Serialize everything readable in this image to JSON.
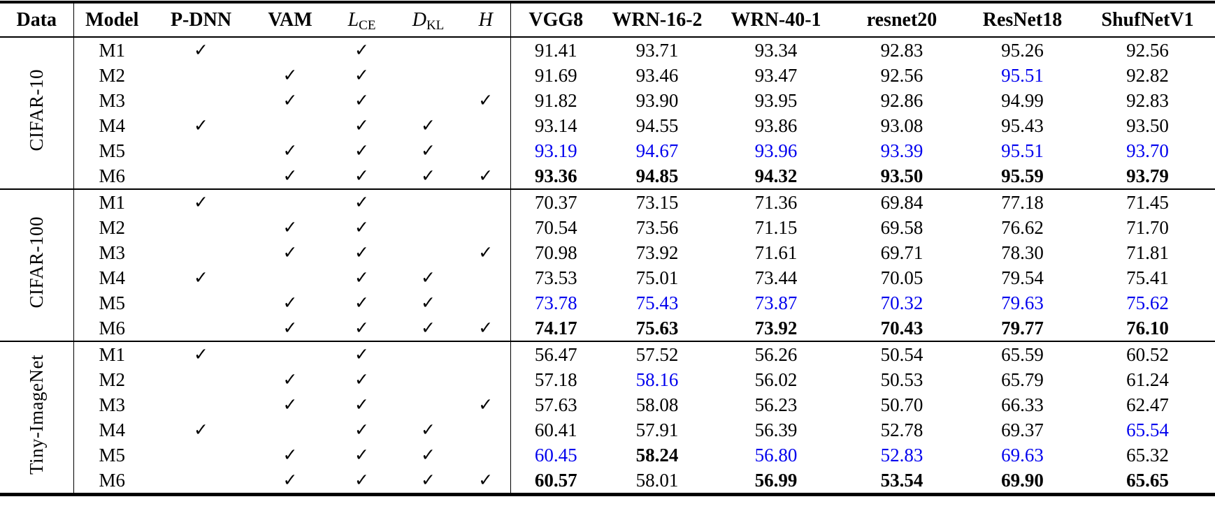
{
  "meta": {
    "description": "Ablation study table: distillation method variants M1-M6 evaluated on three datasets across six student networks",
    "colors": {
      "highlight_blue": "#0000EE",
      "text": "#000000",
      "background": "#ffffff"
    }
  },
  "table": {
    "check_glyph": "✓",
    "header": {
      "data": "Data",
      "model": "Model",
      "pdnn": "P-DNN",
      "vam": "VAM",
      "lce_base": "L",
      "lce_sub": "CE",
      "dkl_base": "D",
      "dkl_sub": "KL",
      "h_base": "H",
      "students": [
        "VGG8",
        "WRN-16-2",
        "WRN-40-1",
        "resnet20",
        "ResNet18",
        "ShufNetV1"
      ]
    },
    "component_columns": [
      "P-DNN",
      "VAM",
      "L_CE",
      "D_KL",
      "H"
    ],
    "groups": [
      {
        "dataset": "CIFAR-10",
        "rows": [
          {
            "model": "M1",
            "checks": [
              1,
              0,
              1,
              0,
              0
            ],
            "cells": [
              {
                "v": "91.41",
                "s": "n"
              },
              {
                "v": "93.71",
                "s": "n"
              },
              {
                "v": "93.34",
                "s": "n"
              },
              {
                "v": "92.83",
                "s": "n"
              },
              {
                "v": "95.26",
                "s": "n"
              },
              {
                "v": "92.56",
                "s": "n"
              }
            ]
          },
          {
            "model": "M2",
            "checks": [
              0,
              1,
              1,
              0,
              0
            ],
            "cells": [
              {
                "v": "91.69",
                "s": "n"
              },
              {
                "v": "93.46",
                "s": "n"
              },
              {
                "v": "93.47",
                "s": "n"
              },
              {
                "v": "92.56",
                "s": "n"
              },
              {
                "v": "95.51",
                "s": "u"
              },
              {
                "v": "92.82",
                "s": "n"
              }
            ]
          },
          {
            "model": "M3",
            "checks": [
              0,
              1,
              1,
              0,
              1
            ],
            "cells": [
              {
                "v": "91.82",
                "s": "n"
              },
              {
                "v": "93.90",
                "s": "n"
              },
              {
                "v": "93.95",
                "s": "n"
              },
              {
                "v": "92.86",
                "s": "n"
              },
              {
                "v": "94.99",
                "s": "n"
              },
              {
                "v": "92.83",
                "s": "n"
              }
            ]
          },
          {
            "model": "M4",
            "checks": [
              1,
              0,
              1,
              1,
              0
            ],
            "cells": [
              {
                "v": "93.14",
                "s": "n"
              },
              {
                "v": "94.55",
                "s": "n"
              },
              {
                "v": "93.86",
                "s": "n"
              },
              {
                "v": "93.08",
                "s": "n"
              },
              {
                "v": "95.43",
                "s": "n"
              },
              {
                "v": "93.50",
                "s": "n"
              }
            ]
          },
          {
            "model": "M5",
            "checks": [
              0,
              1,
              1,
              1,
              0
            ],
            "cells": [
              {
                "v": "93.19",
                "s": "u"
              },
              {
                "v": "94.67",
                "s": "u"
              },
              {
                "v": "93.96",
                "s": "u"
              },
              {
                "v": "93.39",
                "s": "u"
              },
              {
                "v": "95.51",
                "s": "u"
              },
              {
                "v": "93.70",
                "s": "u"
              }
            ]
          },
          {
            "model": "M6",
            "checks": [
              0,
              1,
              1,
              1,
              1
            ],
            "cells": [
              {
                "v": "93.36",
                "s": "b"
              },
              {
                "v": "94.85",
                "s": "b"
              },
              {
                "v": "94.32",
                "s": "b"
              },
              {
                "v": "93.50",
                "s": "b"
              },
              {
                "v": "95.59",
                "s": "b"
              },
              {
                "v": "93.79",
                "s": "b"
              }
            ]
          }
        ]
      },
      {
        "dataset": "CIFAR-100",
        "rows": [
          {
            "model": "M1",
            "checks": [
              1,
              0,
              1,
              0,
              0
            ],
            "cells": [
              {
                "v": "70.37",
                "s": "n"
              },
              {
                "v": "73.15",
                "s": "n"
              },
              {
                "v": "71.36",
                "s": "n"
              },
              {
                "v": "69.84",
                "s": "n"
              },
              {
                "v": "77.18",
                "s": "n"
              },
              {
                "v": "71.45",
                "s": "n"
              }
            ]
          },
          {
            "model": "M2",
            "checks": [
              0,
              1,
              1,
              0,
              0
            ],
            "cells": [
              {
                "v": "70.54",
                "s": "n"
              },
              {
                "v": "73.56",
                "s": "n"
              },
              {
                "v": "71.15",
                "s": "n"
              },
              {
                "v": "69.58",
                "s": "n"
              },
              {
                "v": "76.62",
                "s": "n"
              },
              {
                "v": "71.70",
                "s": "n"
              }
            ]
          },
          {
            "model": "M3",
            "checks": [
              0,
              1,
              1,
              0,
              1
            ],
            "cells": [
              {
                "v": "70.98",
                "s": "n"
              },
              {
                "v": "73.92",
                "s": "n"
              },
              {
                "v": "71.61",
                "s": "n"
              },
              {
                "v": "69.71",
                "s": "n"
              },
              {
                "v": "78.30",
                "s": "n"
              },
              {
                "v": "71.81",
                "s": "n"
              }
            ]
          },
          {
            "model": "M4",
            "checks": [
              1,
              0,
              1,
              1,
              0
            ],
            "cells": [
              {
                "v": "73.53",
                "s": "n"
              },
              {
                "v": "75.01",
                "s": "n"
              },
              {
                "v": "73.44",
                "s": "n"
              },
              {
                "v": "70.05",
                "s": "n"
              },
              {
                "v": "79.54",
                "s": "n"
              },
              {
                "v": "75.41",
                "s": "n"
              }
            ]
          },
          {
            "model": "M5",
            "checks": [
              0,
              1,
              1,
              1,
              0
            ],
            "cells": [
              {
                "v": "73.78",
                "s": "u"
              },
              {
                "v": "75.43",
                "s": "u"
              },
              {
                "v": "73.87",
                "s": "u"
              },
              {
                "v": "70.32",
                "s": "u"
              },
              {
                "v": "79.63",
                "s": "u"
              },
              {
                "v": "75.62",
                "s": "u"
              }
            ]
          },
          {
            "model": "M6",
            "checks": [
              0,
              1,
              1,
              1,
              1
            ],
            "cells": [
              {
                "v": "74.17",
                "s": "b"
              },
              {
                "v": "75.63",
                "s": "b"
              },
              {
                "v": "73.92",
                "s": "b"
              },
              {
                "v": "70.43",
                "s": "b"
              },
              {
                "v": "79.77",
                "s": "b"
              },
              {
                "v": "76.10",
                "s": "b"
              }
            ]
          }
        ]
      },
      {
        "dataset": "Tiny-ImageNet",
        "rows": [
          {
            "model": "M1",
            "checks": [
              1,
              0,
              1,
              0,
              0
            ],
            "cells": [
              {
                "v": "56.47",
                "s": "n"
              },
              {
                "v": "57.52",
                "s": "n"
              },
              {
                "v": "56.26",
                "s": "n"
              },
              {
                "v": "50.54",
                "s": "n"
              },
              {
                "v": "65.59",
                "s": "n"
              },
              {
                "v": "60.52",
                "s": "n"
              }
            ]
          },
          {
            "model": "M2",
            "checks": [
              0,
              1,
              1,
              0,
              0
            ],
            "cells": [
              {
                "v": "57.18",
                "s": "n"
              },
              {
                "v": "58.16",
                "s": "u"
              },
              {
                "v": "56.02",
                "s": "n"
              },
              {
                "v": "50.53",
                "s": "n"
              },
              {
                "v": "65.79",
                "s": "n"
              },
              {
                "v": "61.24",
                "s": "n"
              }
            ]
          },
          {
            "model": "M3",
            "checks": [
              0,
              1,
              1,
              0,
              1
            ],
            "cells": [
              {
                "v": "57.63",
                "s": "n"
              },
              {
                "v": "58.08",
                "s": "n"
              },
              {
                "v": "56.23",
                "s": "n"
              },
              {
                "v": "50.70",
                "s": "n"
              },
              {
                "v": "66.33",
                "s": "n"
              },
              {
                "v": "62.47",
                "s": "n"
              }
            ]
          },
          {
            "model": "M4",
            "checks": [
              1,
              0,
              1,
              1,
              0
            ],
            "cells": [
              {
                "v": "60.41",
                "s": "n"
              },
              {
                "v": "57.91",
                "s": "n"
              },
              {
                "v": "56.39",
                "s": "n"
              },
              {
                "v": "52.78",
                "s": "n"
              },
              {
                "v": "69.37",
                "s": "n"
              },
              {
                "v": "65.54",
                "s": "u"
              }
            ]
          },
          {
            "model": "M5",
            "checks": [
              0,
              1,
              1,
              1,
              0
            ],
            "cells": [
              {
                "v": "60.45",
                "s": "u"
              },
              {
                "v": "58.24",
                "s": "b"
              },
              {
                "v": "56.80",
                "s": "u"
              },
              {
                "v": "52.83",
                "s": "u"
              },
              {
                "v": "69.63",
                "s": "u"
              },
              {
                "v": "65.32",
                "s": "n"
              }
            ]
          },
          {
            "model": "M6",
            "checks": [
              0,
              1,
              1,
              1,
              1
            ],
            "cells": [
              {
                "v": "60.57",
                "s": "b"
              },
              {
                "v": "58.01",
                "s": "n"
              },
              {
                "v": "56.99",
                "s": "b"
              },
              {
                "v": "53.54",
                "s": "b"
              },
              {
                "v": "69.90",
                "s": "b"
              },
              {
                "v": "65.65",
                "s": "b"
              }
            ]
          }
        ]
      }
    ]
  }
}
